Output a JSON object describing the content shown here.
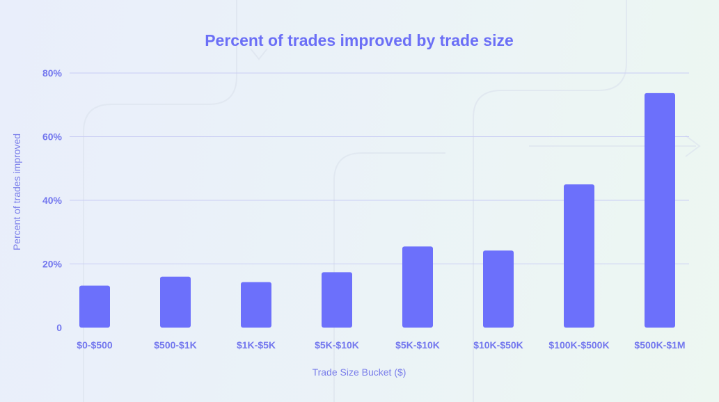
{
  "colors": {
    "bar": "#6c70fb",
    "text": "#6b6ff6",
    "grid": "#c9cdf4"
  },
  "chart_data": {
    "type": "bar",
    "title": "Percent of trades improved by trade size",
    "xlabel": "Trade Size Bucket ($)",
    "ylabel": "Percent of trades improved",
    "categories": [
      "$0-$500",
      "$500-$1K",
      "$1K-$5K",
      "$5K-$10K",
      "$5K-$10K",
      "$10K-$50K",
      "$100K-$500K",
      "$500K-$1M"
    ],
    "values": [
      13.2,
      16.0,
      14.3,
      17.4,
      25.5,
      24.2,
      45.0,
      73.7
    ],
    "ylim": [
      0,
      80
    ],
    "yticks": [
      0,
      20,
      40,
      60,
      80
    ],
    "ytick_labels": [
      "0",
      "20%",
      "40%",
      "60%",
      "80%"
    ],
    "grid": true
  }
}
